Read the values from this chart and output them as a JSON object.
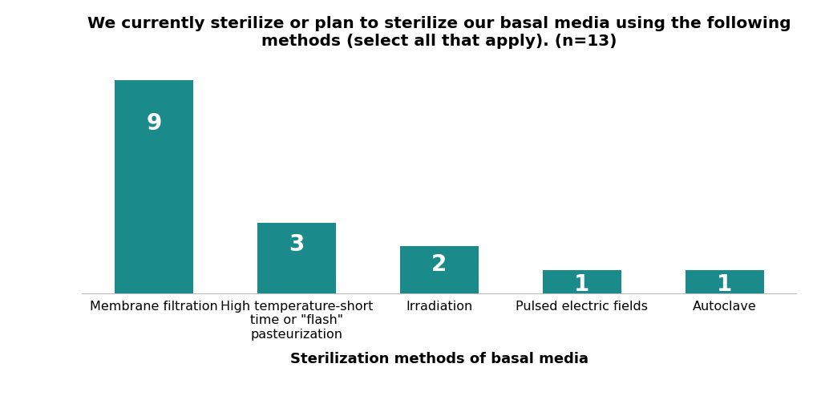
{
  "title_line1": "We currently sterilize or plan to sterilize our basal media using the following",
  "title_line2": "methods (select all that apply). (n=13)",
  "xlabel": "Sterilization methods of basal media",
  "categories": [
    "Membrane filtration",
    "High temperature-short\ntime or \"flash\"\npasteurization",
    "Irradiation",
    "Pulsed electric fields",
    "Autoclave"
  ],
  "values": [
    9,
    3,
    2,
    1,
    1
  ],
  "bar_color": "#1a8a8a",
  "label_color": "#ffffff",
  "background_color": "#ffffff",
  "ylim": [
    0,
    9.8
  ],
  "bar_width": 0.55,
  "label_fontsize": 20,
  "title_fontsize": 14.5,
  "axis_label_fontsize": 13,
  "tick_label_fontsize": 11.5
}
